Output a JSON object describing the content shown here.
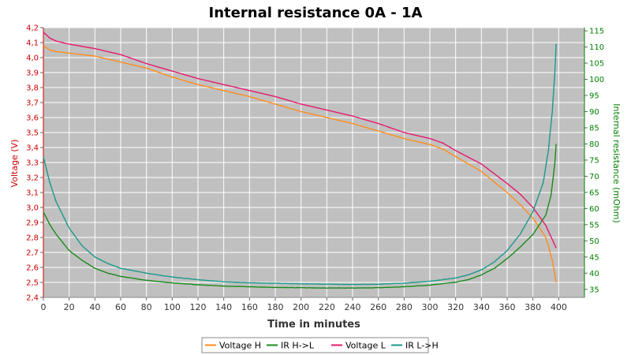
{
  "chart_data": {
    "type": "line",
    "title": "Internal resistance  0A - 1A",
    "xlabel": "Time in minutes",
    "ylabel_left": "Voltage (V)",
    "ylabel_right": "Internal resistance (mOhm)",
    "xlim": [
      0,
      420
    ],
    "ylim_left": [
      2.4,
      4.2
    ],
    "ylim_right": [
      32.5,
      116
    ],
    "x_ticks": [
      0,
      20,
      40,
      60,
      80,
      100,
      120,
      140,
      160,
      180,
      200,
      220,
      240,
      260,
      280,
      300,
      320,
      340,
      360,
      380,
      400
    ],
    "y_ticks_left": [
      2.4,
      2.5,
      2.6,
      2.7,
      2.8,
      2.9,
      3.0,
      3.1,
      3.2,
      3.3,
      3.4,
      3.5,
      3.6,
      3.7,
      3.8,
      3.9,
      4.0,
      4.1,
      4.2
    ],
    "y_ticks_left_labels": [
      "2,4",
      "2,5",
      "2,6",
      "2,7",
      "2,8",
      "2,9",
      "3,0",
      "3,1",
      "3,2",
      "3,3",
      "3,4",
      "3,5",
      "3,6",
      "3,7",
      "3,8",
      "3,9",
      "4,0",
      "4,1",
      "4,2"
    ],
    "y_ticks_right": [
      35,
      40,
      45,
      50,
      55,
      60,
      65,
      70,
      75,
      80,
      85,
      90,
      95,
      100,
      105,
      110,
      115
    ],
    "grid": true,
    "legend_position": "bottom",
    "colors": {
      "plot_background": "#c0c0c0",
      "grid": "#ffffff",
      "left_axis": "#cc0000",
      "right_axis": "#008000"
    },
    "series": [
      {
        "name": "Voltage H",
        "axis": "left",
        "color": "#ff8c1a",
        "points": [
          [
            0,
            4.08
          ],
          [
            5,
            4.05
          ],
          [
            10,
            4.04
          ],
          [
            20,
            4.03
          ],
          [
            40,
            4.01
          ],
          [
            60,
            3.97
          ],
          [
            80,
            3.93
          ],
          [
            100,
            3.87
          ],
          [
            120,
            3.82
          ],
          [
            140,
            3.78
          ],
          [
            160,
            3.74
          ],
          [
            180,
            3.69
          ],
          [
            200,
            3.64
          ],
          [
            220,
            3.6
          ],
          [
            240,
            3.56
          ],
          [
            260,
            3.51
          ],
          [
            280,
            3.46
          ],
          [
            300,
            3.42
          ],
          [
            310,
            3.39
          ],
          [
            320,
            3.34
          ],
          [
            340,
            3.24
          ],
          [
            360,
            3.1
          ],
          [
            370,
            3.02
          ],
          [
            380,
            2.93
          ],
          [
            390,
            2.8
          ],
          [
            395,
            2.65
          ],
          [
            398,
            2.5
          ]
        ]
      },
      {
        "name": "IR H->L",
        "axis": "right",
        "color": "#1a8a1a",
        "points": [
          [
            0,
            59
          ],
          [
            5,
            55
          ],
          [
            10,
            52
          ],
          [
            20,
            47
          ],
          [
            30,
            44
          ],
          [
            40,
            41.5
          ],
          [
            50,
            40
          ],
          [
            60,
            39
          ],
          [
            80,
            37.8
          ],
          [
            100,
            37
          ],
          [
            120,
            36.4
          ],
          [
            140,
            36
          ],
          [
            160,
            35.8
          ],
          [
            180,
            35.6
          ],
          [
            200,
            35.5
          ],
          [
            220,
            35.4
          ],
          [
            240,
            35.4
          ],
          [
            260,
            35.5
          ],
          [
            280,
            35.8
          ],
          [
            300,
            36.3
          ],
          [
            320,
            37.2
          ],
          [
            330,
            38
          ],
          [
            340,
            39.5
          ],
          [
            350,
            41.5
          ],
          [
            360,
            44.5
          ],
          [
            370,
            48
          ],
          [
            380,
            52
          ],
          [
            390,
            58
          ],
          [
            394,
            64
          ],
          [
            397,
            74
          ],
          [
            398,
            80
          ]
        ]
      },
      {
        "name": "Voltage L",
        "axis": "left",
        "color": "#e8186e",
        "points": [
          [
            0,
            4.17
          ],
          [
            5,
            4.13
          ],
          [
            10,
            4.11
          ],
          [
            20,
            4.09
          ],
          [
            40,
            4.06
          ],
          [
            60,
            4.02
          ],
          [
            80,
            3.96
          ],
          [
            100,
            3.91
          ],
          [
            120,
            3.86
          ],
          [
            140,
            3.82
          ],
          [
            160,
            3.78
          ],
          [
            180,
            3.74
          ],
          [
            200,
            3.69
          ],
          [
            220,
            3.65
          ],
          [
            240,
            3.61
          ],
          [
            260,
            3.56
          ],
          [
            280,
            3.5
          ],
          [
            300,
            3.46
          ],
          [
            310,
            3.43
          ],
          [
            320,
            3.38
          ],
          [
            340,
            3.29
          ],
          [
            360,
            3.16
          ],
          [
            370,
            3.09
          ],
          [
            380,
            3.0
          ],
          [
            390,
            2.88
          ],
          [
            398,
            2.73
          ]
        ]
      },
      {
        "name": "IR L->H",
        "axis": "right",
        "color": "#1a9a8a",
        "points": [
          [
            0,
            76
          ],
          [
            5,
            68
          ],
          [
            10,
            62
          ],
          [
            20,
            54
          ],
          [
            30,
            48.5
          ],
          [
            40,
            45
          ],
          [
            50,
            43
          ],
          [
            60,
            41.5
          ],
          [
            80,
            40
          ],
          [
            100,
            38.8
          ],
          [
            120,
            38
          ],
          [
            140,
            37.3
          ],
          [
            160,
            37
          ],
          [
            180,
            36.9
          ],
          [
            200,
            36.7
          ],
          [
            220,
            36.6
          ],
          [
            240,
            36.5
          ],
          [
            260,
            36.6
          ],
          [
            280,
            36.9
          ],
          [
            300,
            37.5
          ],
          [
            320,
            38.5
          ],
          [
            330,
            39.5
          ],
          [
            340,
            41
          ],
          [
            350,
            43.5
          ],
          [
            360,
            47
          ],
          [
            370,
            52
          ],
          [
            380,
            59
          ],
          [
            388,
            68
          ],
          [
            392,
            78
          ],
          [
            395,
            90
          ],
          [
            397,
            102
          ],
          [
            398,
            111
          ]
        ]
      }
    ]
  }
}
